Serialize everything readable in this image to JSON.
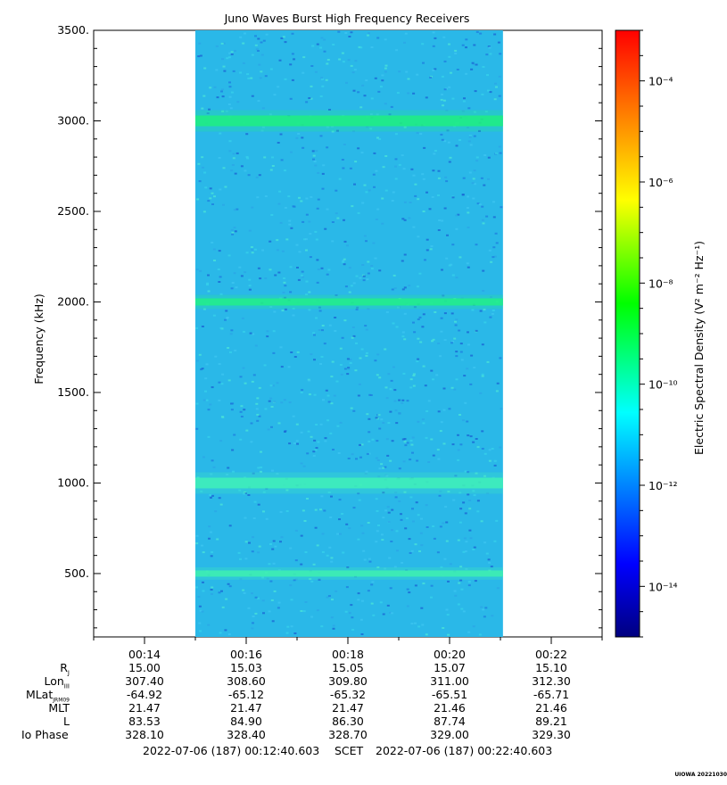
{
  "chart_data": {
    "type": "heatmap",
    "title": "Juno Waves Burst High Frequency Receivers",
    "ylabel": "Frequency (kHz)",
    "ylim": [
      150,
      3500
    ],
    "yticks": [
      "500.",
      "1000.",
      "1500.",
      "2000.",
      "2500.",
      "3000.",
      "3500."
    ],
    "ytick_values": [
      500,
      1000,
      1500,
      2000,
      2500,
      3000,
      3500
    ],
    "xticks": [
      "00:14",
      "00:16",
      "00:18",
      "00:20",
      "00:22"
    ],
    "x_data_range": [
      "00:15:00",
      "00:21:03"
    ],
    "background_level": "1e-12 to 1e-11",
    "bands_khz": [
      500,
      1000,
      2000,
      3000
    ],
    "colorbar": {
      "label": "Electric Spectral Density (V² m⁻² Hz⁻¹)",
      "scale": "log",
      "range": [
        "1e-15",
        "1e-3"
      ],
      "ticks": [
        "10⁻⁴",
        "10⁻⁶",
        "10⁻⁸",
        "10⁻¹⁰",
        "10⁻¹²",
        "10⁻¹⁴"
      ],
      "tick_exponents": [
        -4,
        -6,
        -8,
        -10,
        -12,
        -14
      ],
      "colors": [
        "#000080",
        "#0000ff",
        "#00ffff",
        "#00ff00",
        "#ffff00",
        "#ff8000",
        "#ff0000"
      ]
    }
  },
  "ephemeris": {
    "labels": [
      "R_J",
      "Lon_III",
      "MLat_JRM09",
      "MLT",
      "L",
      "Io Phase"
    ],
    "columns": [
      {
        "time": "00:14",
        "values": [
          "15.00",
          "307.40",
          "-64.92",
          "21.47",
          "83.53",
          "328.10"
        ]
      },
      {
        "time": "00:16",
        "values": [
          "15.03",
          "308.60",
          "-65.12",
          "21.47",
          "84.90",
          "328.40"
        ]
      },
      {
        "time": "00:18",
        "values": [
          "15.05",
          "309.80",
          "-65.32",
          "21.47",
          "86.30",
          "328.70"
        ]
      },
      {
        "time": "00:20",
        "values": [
          "15.07",
          "311.00",
          "-65.51",
          "21.46",
          "87.74",
          "329.00"
        ]
      },
      {
        "time": "00:22",
        "values": [
          "15.10",
          "312.30",
          "-65.71",
          "21.46",
          "89.21",
          "329.30"
        ]
      }
    ]
  },
  "footer": {
    "start": "2022-07-06 (187) 00:12:40.603",
    "mid": "SCET",
    "end": "2022-07-06 (187) 00:22:40.603"
  },
  "stamp": "UIOWA 20221030"
}
